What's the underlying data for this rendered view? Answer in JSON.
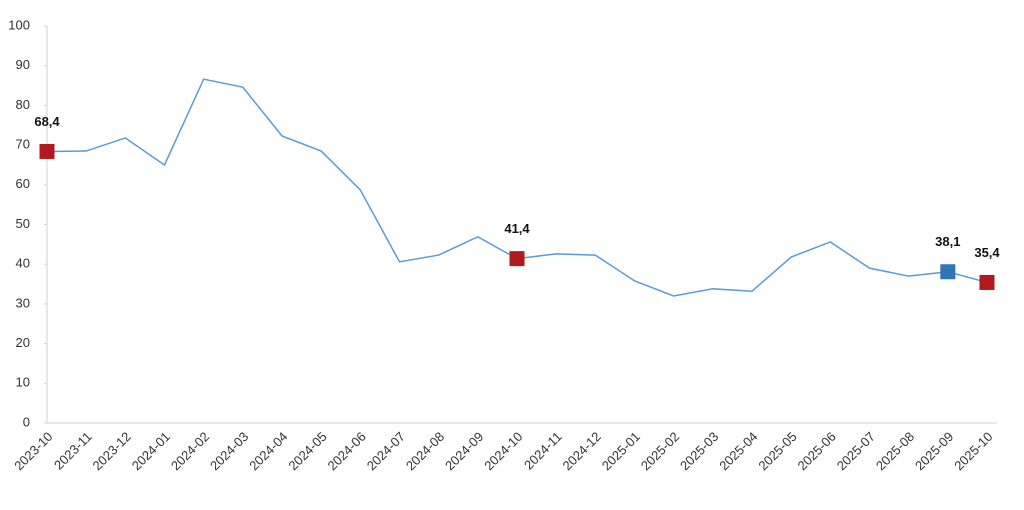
{
  "chart_data": {
    "type": "line",
    "categories": [
      "2023-10",
      "2023-11",
      "2023-12",
      "2024-01",
      "2024-02",
      "2024-03",
      "2024-04",
      "2024-05",
      "2024-06",
      "2024-07",
      "2024-08",
      "2024-09",
      "2024-10",
      "2024-11",
      "2024-12",
      "2025-01",
      "2025-02",
      "2025-03",
      "2025-04",
      "2025-05",
      "2025-06",
      "2025-07",
      "2025-08",
      "2025-09",
      "2025-10"
    ],
    "series": [
      {
        "color": "#5b9bd5",
        "values": [
          68.4,
          68.5,
          71.8,
          65.0,
          86.6,
          84.6,
          72.3,
          68.5,
          58.7,
          40.6,
          42.3,
          46.9,
          41.4,
          42.6,
          42.3,
          35.8,
          32.0,
          33.8,
          33.2,
          41.8,
          45.6,
          39.0,
          37.0,
          38.1,
          35.4
        ],
        "value_labels": [
          "68,4",
          null,
          null,
          null,
          null,
          null,
          null,
          null,
          null,
          null,
          null,
          null,
          "41,4",
          null,
          null,
          null,
          null,
          null,
          null,
          null,
          null,
          null,
          null,
          "38,1",
          "35,4"
        ],
        "marker_colors": [
          "#b0191e",
          null,
          null,
          null,
          null,
          null,
          null,
          null,
          null,
          null,
          null,
          null,
          "#b0191e",
          null,
          null,
          null,
          null,
          null,
          null,
          null,
          null,
          null,
          null,
          "#2e75b6",
          "#b0191e"
        ]
      }
    ],
    "ylim": [
      0,
      100
    ],
    "yticks": [
      0,
      10,
      20,
      30,
      40,
      50,
      60,
      70,
      80,
      90,
      100
    ],
    "grid": false
  }
}
